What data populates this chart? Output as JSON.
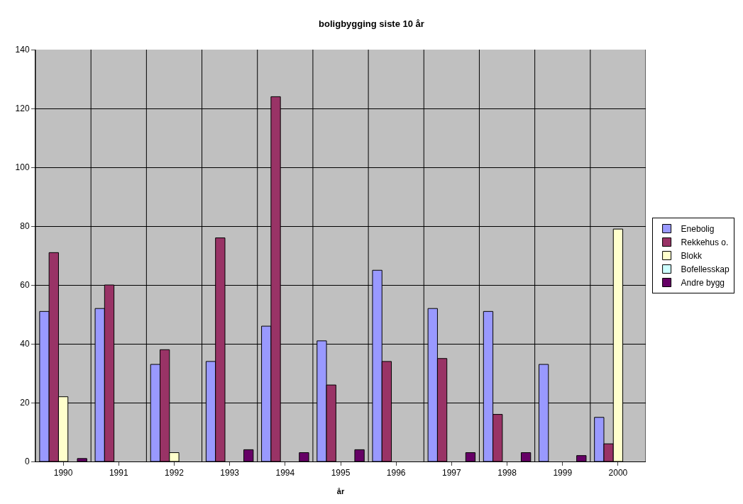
{
  "chart_data": {
    "type": "bar",
    "title": "boligbygging siste 10 år",
    "xlabel": "år",
    "categories": [
      "1990",
      "1991",
      "1992",
      "1993",
      "1994",
      "1995",
      "1996",
      "1997",
      "1998",
      "1999",
      "2000"
    ],
    "series": [
      {
        "name": "Enebolig",
        "color": "#9999ff",
        "values": [
          51,
          52,
          33,
          34,
          46,
          41,
          65,
          52,
          51,
          33,
          15
        ]
      },
      {
        "name": "Rekkehus o.",
        "color": "#993366",
        "values": [
          71,
          60,
          38,
          76,
          124,
          26,
          34,
          35,
          16,
          null,
          6
        ]
      },
      {
        "name": "Blokk",
        "color": "#ffffcc",
        "values": [
          22,
          null,
          3,
          null,
          null,
          null,
          null,
          null,
          null,
          null,
          79
        ]
      },
      {
        "name": "Bofellesskap",
        "color": "#ccffff",
        "values": [
          null,
          null,
          null,
          null,
          null,
          null,
          null,
          null,
          null,
          null,
          null
        ]
      },
      {
        "name": "Andre bygg",
        "color": "#660066",
        "values": [
          1,
          null,
          null,
          4,
          3,
          4,
          null,
          3,
          3,
          2,
          null
        ]
      }
    ],
    "ylim": [
      0,
      140
    ],
    "yticks": [
      0,
      20,
      40,
      60,
      80,
      100,
      120,
      140
    ],
    "grid": true,
    "legend": "right"
  }
}
